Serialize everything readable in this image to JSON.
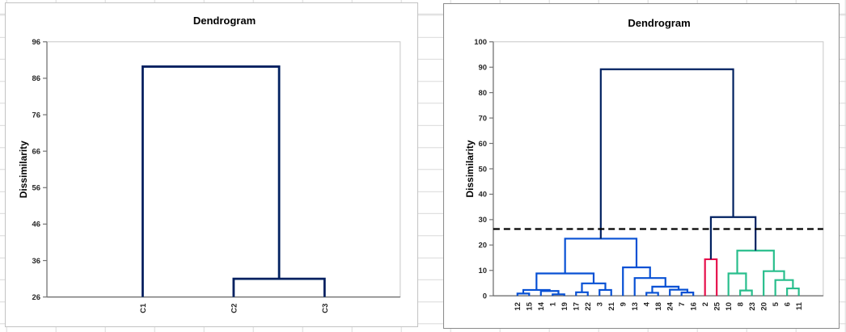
{
  "app": {
    "background": "#ffffff",
    "gridline_color": "#d9d9d9",
    "axis_color": "#737373",
    "plot_border_color": "#c6c6c6",
    "tick_text_color": "#262626"
  },
  "chart_data": [
    {
      "type": "dendrogram",
      "title": "Dendrogram",
      "ylabel": "Dissimilarity",
      "ylim": [
        26,
        96
      ],
      "yticks": [
        26,
        36,
        46,
        56,
        66,
        76,
        86,
        96
      ],
      "grid": false,
      "legend": false,
      "leaves": [
        "C1",
        "C2",
        "C3"
      ],
      "merges": [
        {
          "children": [
            "C2",
            "C3"
          ],
          "height": 31,
          "color": "#002060"
        },
        {
          "children": [
            "C1",
            "@0"
          ],
          "height": 89.2,
          "color": "#002060"
        }
      ],
      "cut_line": null
    },
    {
      "type": "dendrogram",
      "title": "Dendrogram",
      "ylabel": "Dissimilarity",
      "ylim": [
        0,
        100
      ],
      "yticks": [
        0,
        10,
        20,
        30,
        40,
        50,
        60,
        70,
        80,
        90,
        100
      ],
      "grid": false,
      "legend": false,
      "leaves": [
        "12",
        "15",
        "14",
        "1",
        "19",
        "17",
        "22",
        "3",
        "21",
        "9",
        "13",
        "4",
        "18",
        "24",
        "7",
        "16",
        "2",
        "25",
        "10",
        "8",
        "23",
        "20",
        "5",
        "6",
        "11"
      ],
      "merges": [
        {
          "children": [
            "12",
            "15"
          ],
          "height": 0.9,
          "color": "#0750d4"
        },
        {
          "children": [
            "1",
            "19"
          ],
          "height": 0.6,
          "color": "#0750d4"
        },
        {
          "children": [
            "14",
            "@1"
          ],
          "height": 1.9,
          "color": "#0750d4"
        },
        {
          "children": [
            "@0",
            "@2"
          ],
          "height": 2.3,
          "color": "#0750d4"
        },
        {
          "children": [
            "17",
            "22"
          ],
          "height": 1.4,
          "color": "#0750d4"
        },
        {
          "children": [
            "3",
            "21"
          ],
          "height": 2.3,
          "color": "#0750d4"
        },
        {
          "children": [
            "@4",
            "@5"
          ],
          "height": 4.9,
          "color": "#0750d4"
        },
        {
          "children": [
            "@3",
            "@6"
          ],
          "height": 8.8,
          "color": "#0750d4"
        },
        {
          "children": [
            "4",
            "18"
          ],
          "height": 1.2,
          "color": "#0750d4"
        },
        {
          "children": [
            "7",
            "16"
          ],
          "height": 1.3,
          "color": "#0750d4"
        },
        {
          "children": [
            "24",
            "@9"
          ],
          "height": 2.4,
          "color": "#0750d4"
        },
        {
          "children": [
            "@8",
            "@10"
          ],
          "height": 3.6,
          "color": "#0750d4"
        },
        {
          "children": [
            "13",
            "@11"
          ],
          "height": 7.0,
          "color": "#0750d4"
        },
        {
          "children": [
            "9",
            "@12"
          ],
          "height": 11.2,
          "color": "#0750d4"
        },
        {
          "children": [
            "@7",
            "@13"
          ],
          "height": 22.5,
          "color": "#0750d4"
        },
        {
          "children": [
            "2",
            "25"
          ],
          "height": 14.4,
          "color": "#e60f4b"
        },
        {
          "children": [
            "8",
            "23"
          ],
          "height": 2.1,
          "color": "#28be8c"
        },
        {
          "children": [
            "10",
            "@16"
          ],
          "height": 8.8,
          "color": "#28be8c"
        },
        {
          "children": [
            "6",
            "11"
          ],
          "height": 2.9,
          "color": "#28be8c"
        },
        {
          "children": [
            "5",
            "@18"
          ],
          "height": 6.2,
          "color": "#28be8c"
        },
        {
          "children": [
            "20",
            "@19"
          ],
          "height": 9.7,
          "color": "#28be8c"
        },
        {
          "children": [
            "@17",
            "@20"
          ],
          "height": 17.8,
          "color": "#28be8c"
        },
        {
          "children": [
            "@15",
            "@21"
          ],
          "height": 31,
          "color": "#002060"
        },
        {
          "children": [
            "@14",
            "@22"
          ],
          "height": 89.2,
          "color": "#002060"
        }
      ],
      "cut_line": {
        "height": 26.3,
        "color": "#000000",
        "style": "dashed"
      }
    }
  ]
}
